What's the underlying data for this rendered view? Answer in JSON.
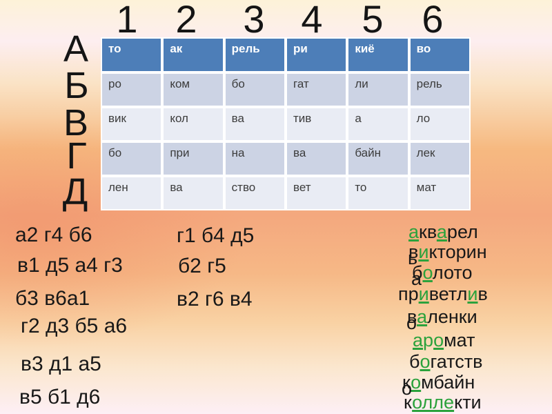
{
  "slide": {
    "numbers": [
      "1",
      "2",
      "3",
      "4",
      "5",
      "6"
    ],
    "letters": [
      "А",
      "Б",
      "В",
      "Г",
      "Д"
    ]
  },
  "table": {
    "header": [
      "то",
      "ак",
      "рель",
      "ри",
      "киё",
      "во"
    ],
    "rows": [
      [
        "ро",
        "ком",
        "бо",
        "гат",
        "ли",
        "рель"
      ],
      [
        "вик",
        "кол",
        "ва",
        "тив",
        "а",
        "ло"
      ],
      [
        "бо",
        "при",
        "на",
        "ва",
        "байн",
        "лек"
      ],
      [
        "лен",
        "ва",
        "ство",
        "вет",
        "то",
        "мат"
      ]
    ]
  },
  "clues": {
    "left": [
      "а2 г4 б6",
      "в1 д5 а4 г3",
      "б3 в6а1",
      "г2 д3 б5 а6",
      "в3 д1 а5",
      "в5 б1 д6"
    ],
    "middle": [
      "г1 б4 д5",
      "б2 г5",
      "в2 г6 в4"
    ]
  },
  "answers": [
    {
      "overlap": "",
      "segments": [
        {
          "t": "а",
          "s": 1
        },
        {
          "t": "кв",
          "s": 0
        },
        {
          "t": "а",
          "s": 1
        },
        {
          "t": "рел",
          "s": 0
        }
      ]
    },
    {
      "overlap": "ь",
      "segments": [
        {
          "t": "в",
          "s": 0
        },
        {
          "t": "и",
          "s": 1
        },
        {
          "t": "кторин",
          "s": 0
        }
      ]
    },
    {
      "overlap": "а",
      "segments": [
        {
          "t": "б",
          "s": 0
        },
        {
          "t": "о",
          "s": 1
        },
        {
          "t": "лото",
          "s": 0
        }
      ]
    },
    {
      "overlap": "",
      "segments": [
        {
          "t": "пр",
          "s": 0
        },
        {
          "t": "и",
          "s": 1
        },
        {
          "t": "ветл",
          "s": 0
        },
        {
          "t": "и",
          "s": 1
        },
        {
          "t": "в",
          "s": 0
        }
      ]
    },
    {
      "overlap": "о",
      "segments": [
        {
          "t": "в",
          "s": 0
        },
        {
          "t": "а",
          "s": 1
        },
        {
          "t": "ленки",
          "s": 0
        }
      ]
    },
    {
      "overlap": "",
      "segments": [
        {
          "t": "а",
          "s": 1
        },
        {
          "t": "р",
          "s": 2
        },
        {
          "t": "о",
          "s": 1
        },
        {
          "t": "мат",
          "s": 0
        }
      ]
    },
    {
      "overlap": "",
      "segments": [
        {
          "t": "б",
          "s": 0
        },
        {
          "t": "о",
          "s": 1
        },
        {
          "t": "гатств",
          "s": 0
        }
      ]
    },
    {
      "overlap": "о",
      "segments": [
        {
          "t": "к",
          "s": 0
        },
        {
          "t": "о",
          "s": 1
        },
        {
          "t": "мбайн",
          "s": 0
        }
      ]
    },
    {
      "overlap": "",
      "segments": [
        {
          "t": "к",
          "s": 0
        },
        {
          "t": "олле",
          "s": 1
        },
        {
          "t": "кти",
          "s": 0
        }
      ]
    }
  ],
  "colors": {
    "header_bg": "#4d7eb8",
    "header_text": "#ffffff",
    "row_dark": "#ccd3e4",
    "row_light": "#e9ecf4",
    "table_text": "#3c3c3c",
    "green": "#2ba23c"
  }
}
